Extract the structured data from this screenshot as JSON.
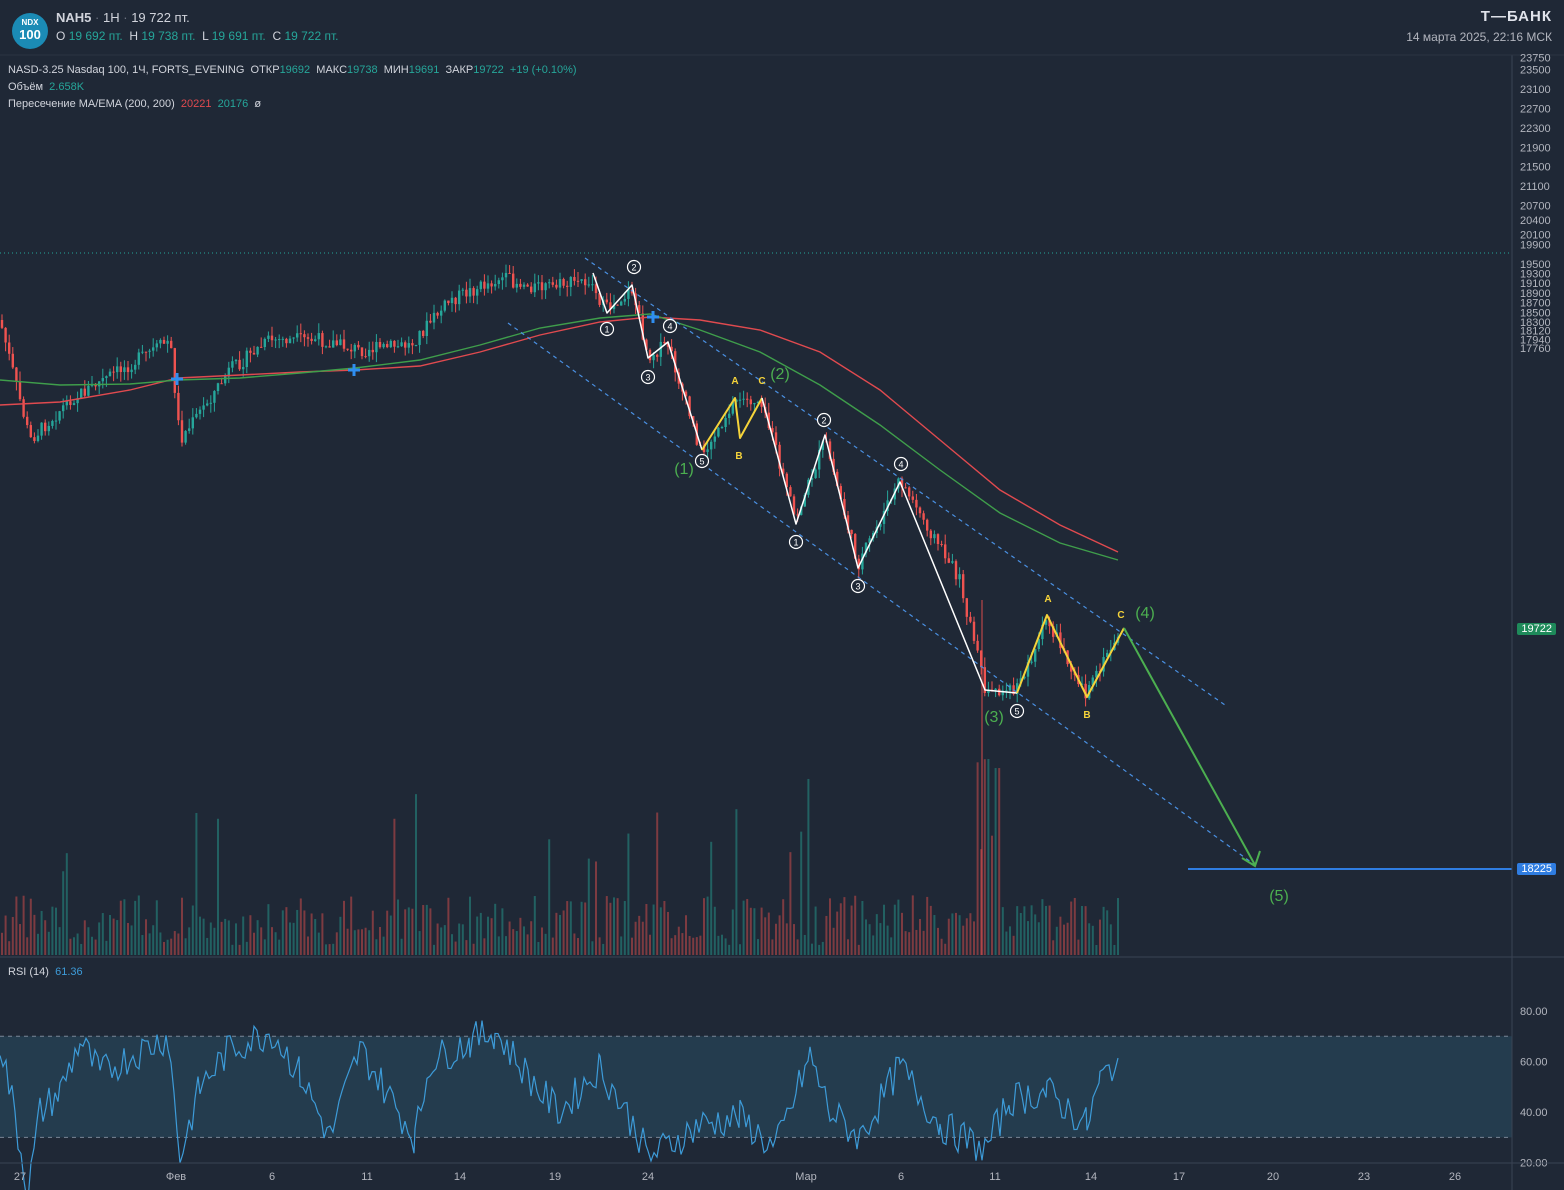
{
  "header": {
    "logo_top": "NDX",
    "logo_bottom": "100",
    "ticker": "NAH5",
    "interval": "1H",
    "last_price": "19 722 пт.",
    "ohlc": {
      "o_label": "O",
      "o_value": "19 692 пт.",
      "h_label": "H",
      "h_value": "19 738 пт.",
      "l_label": "L",
      "l_value": "19 691 пт.",
      "c_label": "C",
      "c_value": "19 722 пт."
    },
    "brand": "Т—БАНК",
    "datetime": "14 марта 2025, 22:16 МСК"
  },
  "legend": {
    "symbol_line": "NASD-3.25 Nasdaq 100, 1Ч, FORTS_EVENING",
    "open_label": "ОТКР",
    "open_value": "19692",
    "high_label": "МАКС",
    "high_value": "19738",
    "low_label": "МИН",
    "low_value": "19691",
    "close_label": "ЗАКР",
    "close_value": "19722",
    "change": "+19 (+0.10%)",
    "volume_label": "Объём",
    "volume_value": "2.658K",
    "ma_label": "Пересечение MA/EMA (200, 200)",
    "ma_value": "20221",
    "ema_value": "20176",
    "ma_symbol": "ø"
  },
  "colors": {
    "background": "#1f2836",
    "up": "#26a69a",
    "down": "#ef5350",
    "ma": "#e04a4f",
    "ema": "#3f9e4b",
    "channel": "#4a90e2",
    "wave_white": "#ffffff",
    "wave_yellow": "#f5d33a",
    "wave_green": "#4caf50",
    "target": "#2f7de1",
    "rsi": "#3d9bd8",
    "rsi_band": "#243c4e"
  },
  "price_axis": {
    "ticks": [
      "23750",
      "23500",
      "23100",
      "22700",
      "22300",
      "21900",
      "21500",
      "21100",
      "20700",
      "20400",
      "20100",
      "19900",
      "19500",
      "19300",
      "19100",
      "18900",
      "18700",
      "18500",
      "18300",
      "18120",
      "17940",
      "17760"
    ],
    "current_price": "19722",
    "target_price": "18225"
  },
  "time_axis": {
    "labels": [
      "27",
      "Фев",
      "6",
      "11",
      "14",
      "19",
      "24",
      "Мар",
      "6",
      "11",
      "14",
      "17",
      "20",
      "23",
      "26"
    ]
  },
  "rsi": {
    "label": "RSI (14)",
    "value": "61.36",
    "ticks": [
      "80.00",
      "60.00",
      "40.00",
      "20.00"
    ]
  },
  "wave_labels": {
    "circled": [
      "1",
      "2",
      "3",
      "4",
      "5"
    ],
    "abc": [
      "A",
      "B",
      "C"
    ],
    "major": [
      "(1)",
      "(2)",
      "(3)",
      "(4)",
      "(5)"
    ]
  },
  "chart_data": {
    "type": "candlestick",
    "symbol": "NASD-3.25 Nasdaq 100",
    "interval": "1Ч",
    "price_scale": [
      17760,
      23750
    ],
    "last": 19722,
    "indicators": {
      "MA_200": 20221,
      "EMA_200": 20176,
      "RSI_14": 61.36
    },
    "target_level": 18225,
    "price_path": [
      {
        "x": "27",
        "y": 21000
      },
      {
        "x": "Фев",
        "y": 21300
      },
      {
        "x": "6",
        "y": 21550
      },
      {
        "x": "11",
        "y": 21750
      },
      {
        "x": "14",
        "y": 22050
      },
      {
        "x": "19",
        "y": 22250
      },
      {
        "x": "24",
        "y": 21300
      },
      {
        "x": "Мар",
        "y": 20550
      },
      {
        "x": "6",
        "y": 20700
      },
      {
        "x": "11",
        "y": 19300
      },
      {
        "x": "14",
        "y": 19350
      },
      {
        "x": "14",
        "y": 19722
      }
    ],
    "projection": [
      {
        "x": "14",
        "y": 19722
      },
      {
        "x": "20",
        "y": 18225
      }
    ]
  }
}
